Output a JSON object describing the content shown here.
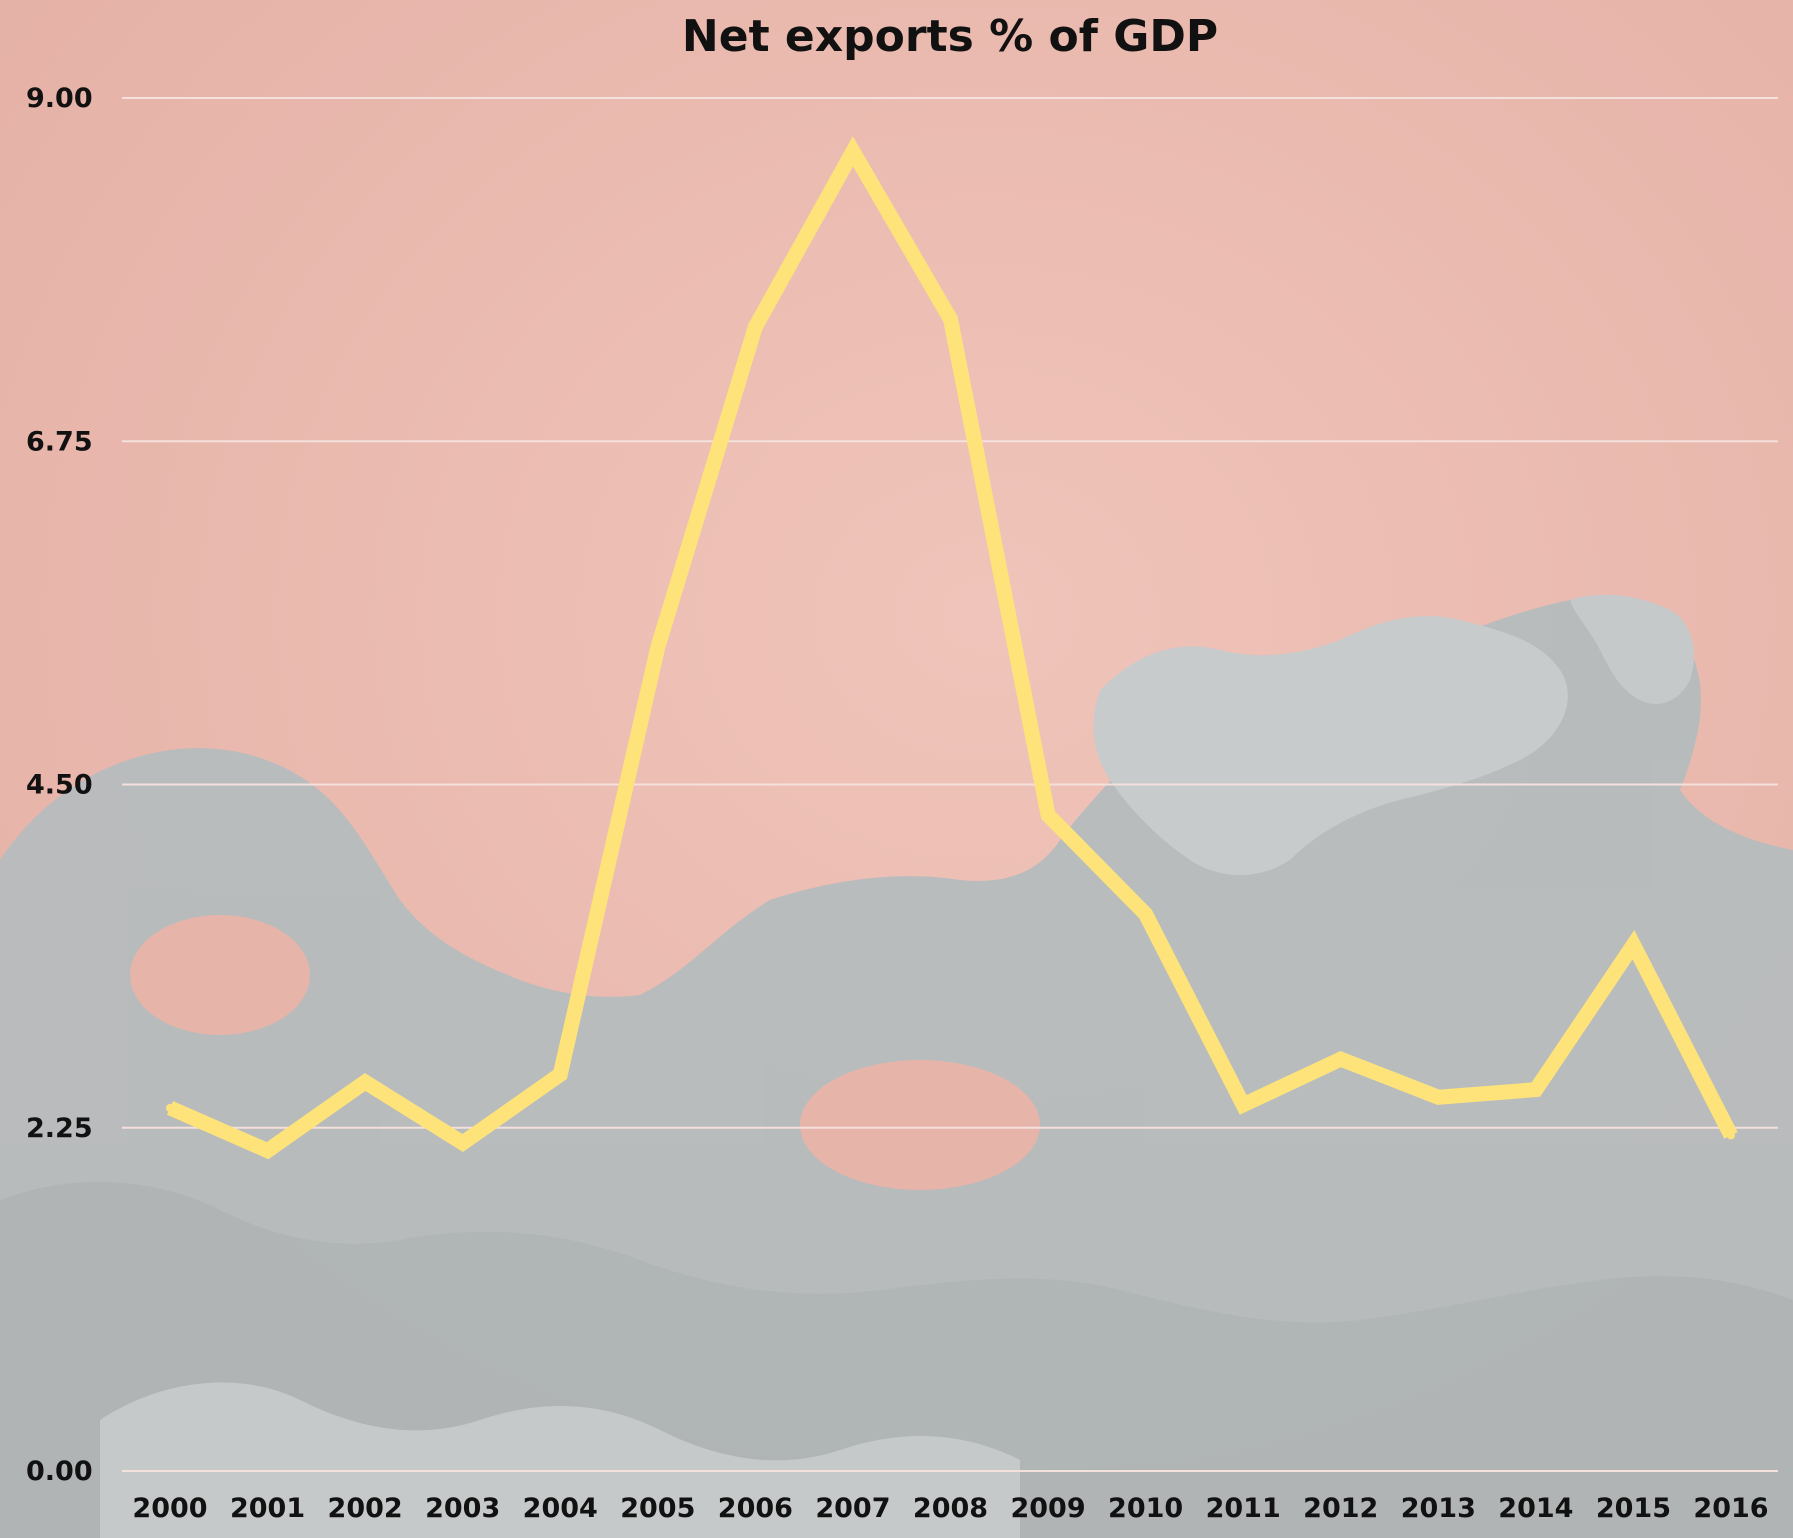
{
  "chart_data": {
    "type": "line",
    "title": "Net exports %  of GDP",
    "xlabel": "",
    "ylabel": "",
    "x": [
      "2000",
      "2001",
      "2002",
      "2003",
      "2004",
      "2005",
      "2006",
      "2007",
      "2008",
      "2009",
      "2010",
      "2011",
      "2012",
      "2013",
      "2014",
      "2015",
      "2016"
    ],
    "series": [
      {
        "values": [
          2.38,
          2.1,
          2.55,
          2.15,
          2.6,
          5.4,
          7.5,
          8.65,
          7.55,
          4.3,
          3.65,
          2.4,
          2.7,
          2.45,
          2.5,
          3.45,
          2.2
        ]
      }
    ],
    "ylim": [
      0,
      9
    ],
    "yticks": [
      "0.00",
      "2.25",
      "4.50",
      "6.75",
      "9.00"
    ],
    "grid": true,
    "legend": "none",
    "colors": {
      "background": "#ecbdb3",
      "line": "#fde37a",
      "gridline": "#f4e0dc",
      "text": "#111111"
    }
  }
}
